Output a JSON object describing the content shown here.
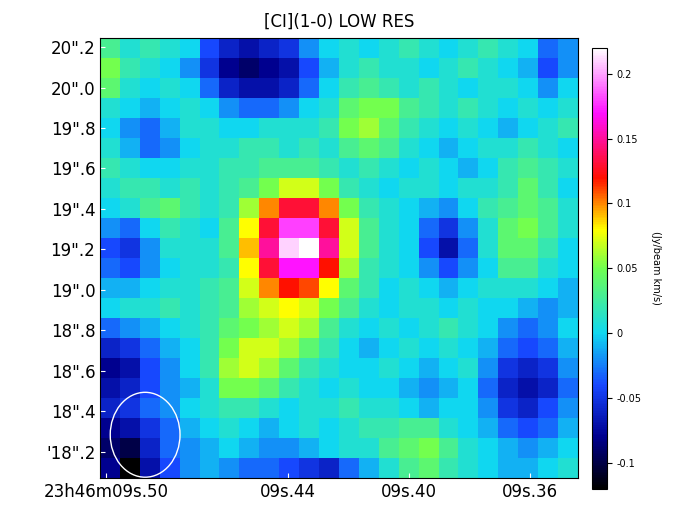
{
  "chart_data": {
    "type": "heatmap",
    "title": "[CI](1-0) LOW RES",
    "xlim": [
      9.502,
      9.344
    ],
    "xticks": [
      {
        "value": 9.5,
        "label": "23h46m09s.50"
      },
      {
        "value": 9.44,
        "label": "09s.44"
      },
      {
        "value": 9.4,
        "label": "09s.40"
      },
      {
        "value": 9.36,
        "label": "09s.36"
      }
    ],
    "ylim": [
      18.07,
      20.245
    ],
    "yticks": [
      {
        "value": 20.2,
        "label": "20\".2"
      },
      {
        "value": 20.0,
        "label": "20\".0"
      },
      {
        "value": 19.8,
        "label": "19\".8"
      },
      {
        "value": 19.6,
        "label": "19\".6"
      },
      {
        "value": 19.4,
        "label": "19\".4"
      },
      {
        "value": 19.2,
        "label": "19\".2"
      },
      {
        "value": 19.0,
        "label": "19\".0"
      },
      {
        "value": 18.8,
        "label": "18\".8"
      },
      {
        "value": 18.6,
        "label": "18\".6"
      },
      {
        "value": 18.4,
        "label": "18\".4"
      },
      {
        "value": 18.2,
        "label": "'18\".2"
      }
    ],
    "colorbar_label": "(Jy/beam km/s)",
    "colorbar_range": [
      -0.12,
      0.22
    ],
    "colorbar_ticks": [
      0.2,
      0.15,
      0.1,
      0.05,
      0,
      -0.05,
      -0.1
    ],
    "cells": [
      [
        0.03,
        0.01,
        0.02,
        0.01,
        0.0,
        -0.04,
        -0.06,
        -0.07,
        -0.06,
        -0.05,
        -0.02,
        0.0,
        0.01,
        0.0,
        0.01,
        0.02,
        0.01,
        0.0,
        0.01,
        0.02,
        0.01,
        0.0,
        -0.03,
        -0.02
      ],
      [
        0.05,
        0.02,
        0.01,
        0.0,
        -0.02,
        -0.05,
        -0.08,
        -0.09,
        -0.08,
        -0.07,
        -0.04,
        -0.01,
        0.01,
        0.02,
        0.01,
        0.01,
        0.0,
        0.01,
        0.02,
        0.01,
        0.0,
        -0.01,
        -0.04,
        -0.02
      ],
      [
        0.04,
        0.01,
        0.0,
        0.01,
        0.0,
        -0.03,
        -0.06,
        -0.07,
        -0.07,
        -0.06,
        -0.03,
        0.0,
        0.02,
        0.03,
        0.02,
        0.01,
        0.02,
        0.01,
        0.0,
        0.01,
        0.01,
        0.0,
        -0.02,
        0.0
      ],
      [
        0.01,
        0.0,
        -0.01,
        0.0,
        0.01,
        0.0,
        -0.02,
        -0.03,
        -0.03,
        -0.02,
        0.0,
        0.01,
        0.04,
        0.05,
        0.05,
        0.03,
        0.02,
        0.01,
        0.02,
        0.01,
        0.0,
        0.01,
        0.0,
        0.01
      ],
      [
        0.0,
        -0.02,
        -0.03,
        -0.01,
        0.01,
        0.01,
        0.0,
        0.0,
        0.01,
        0.01,
        0.01,
        0.02,
        0.05,
        0.06,
        0.04,
        0.02,
        0.01,
        0.0,
        0.01,
        0.0,
        -0.01,
        0.0,
        0.01,
        0.02
      ],
      [
        0.01,
        -0.01,
        -0.03,
        -0.02,
        0.0,
        0.01,
        0.01,
        0.02,
        0.02,
        0.01,
        0.02,
        0.01,
        0.03,
        0.04,
        0.03,
        0.01,
        0.0,
        -0.01,
        0.0,
        0.01,
        0.01,
        0.02,
        0.01,
        0.0
      ],
      [
        0.02,
        0.01,
        0.0,
        0.0,
        0.01,
        0.01,
        0.02,
        0.02,
        0.03,
        0.03,
        0.03,
        0.02,
        0.01,
        0.02,
        0.01,
        0.0,
        0.01,
        0.0,
        -0.01,
        0.0,
        0.02,
        0.03,
        0.02,
        0.01
      ],
      [
        0.01,
        0.02,
        0.02,
        0.01,
        0.02,
        0.01,
        0.02,
        0.03,
        0.05,
        0.07,
        0.07,
        0.05,
        0.02,
        0.01,
        0.0,
        0.01,
        0.01,
        0.0,
        0.01,
        0.01,
        0.02,
        0.04,
        0.02,
        0.0
      ],
      [
        0.0,
        0.01,
        0.03,
        0.04,
        0.02,
        0.01,
        0.02,
        0.06,
        0.1,
        0.13,
        0.13,
        0.1,
        0.05,
        0.02,
        0.01,
        0.0,
        -0.01,
        -0.02,
        0.0,
        0.02,
        0.03,
        0.04,
        0.03,
        0.01
      ],
      [
        -0.02,
        -0.03,
        0.0,
        0.02,
        0.01,
        0.0,
        0.03,
        0.08,
        0.13,
        0.18,
        0.18,
        0.13,
        0.07,
        0.03,
        0.01,
        0.0,
        -0.03,
        -0.05,
        -0.02,
        0.01,
        0.04,
        0.05,
        0.03,
        0.01
      ],
      [
        -0.04,
        -0.05,
        -0.02,
        0.01,
        0.01,
        0.01,
        0.03,
        0.09,
        0.15,
        0.21,
        0.22,
        0.15,
        0.07,
        0.03,
        0.01,
        0.0,
        -0.04,
        -0.07,
        -0.03,
        0.01,
        0.04,
        0.04,
        0.02,
        0.0
      ],
      [
        -0.03,
        -0.04,
        -0.02,
        0.0,
        0.01,
        0.01,
        0.02,
        0.08,
        0.13,
        0.17,
        0.17,
        0.12,
        0.06,
        0.02,
        0.01,
        0.0,
        -0.02,
        -0.04,
        -0.02,
        0.0,
        0.03,
        0.03,
        0.01,
        0.0
      ],
      [
        -0.01,
        -0.01,
        0.0,
        0.01,
        0.01,
        0.02,
        0.03,
        0.07,
        0.1,
        0.12,
        0.11,
        0.08,
        0.04,
        0.02,
        0.0,
        0.01,
        0.0,
        -0.01,
        0.0,
        0.01,
        0.01,
        0.01,
        0.0,
        -0.01
      ],
      [
        0.0,
        0.01,
        0.01,
        0.02,
        0.01,
        0.02,
        0.03,
        0.06,
        0.07,
        0.08,
        0.07,
        0.05,
        0.03,
        0.01,
        0.0,
        0.01,
        0.01,
        0.0,
        0.01,
        0.0,
        0.0,
        -0.01,
        -0.02,
        -0.01
      ],
      [
        -0.03,
        -0.02,
        -0.01,
        0.0,
        0.01,
        0.02,
        0.04,
        0.05,
        0.06,
        0.07,
        0.06,
        0.03,
        0.01,
        0.0,
        0.01,
        0.0,
        0.01,
        0.02,
        0.01,
        0.0,
        -0.02,
        -0.03,
        -0.02,
        0.0
      ],
      [
        -0.06,
        -0.05,
        -0.03,
        -0.01,
        0.0,
        0.02,
        0.05,
        0.07,
        0.07,
        0.06,
        0.04,
        0.02,
        0.0,
        -0.01,
        0.0,
        0.01,
        0.0,
        0.01,
        0.0,
        -0.01,
        -0.03,
        -0.04,
        -0.03,
        -0.01
      ],
      [
        -0.08,
        -0.07,
        -0.04,
        -0.02,
        0.0,
        0.02,
        0.06,
        0.07,
        0.06,
        0.04,
        0.02,
        0.01,
        0.0,
        0.0,
        0.01,
        0.0,
        -0.01,
        0.0,
        0.01,
        -0.02,
        -0.05,
        -0.06,
        -0.05,
        -0.02
      ],
      [
        -0.07,
        -0.06,
        -0.04,
        -0.02,
        -0.01,
        0.01,
        0.05,
        0.05,
        0.04,
        0.02,
        0.01,
        0.0,
        0.01,
        0.0,
        0.0,
        -0.01,
        -0.02,
        -0.01,
        0.0,
        -0.03,
        -0.06,
        -0.07,
        -0.06,
        -0.03
      ],
      [
        -0.06,
        -0.05,
        -0.03,
        -0.02,
        0.0,
        0.01,
        0.02,
        0.02,
        0.01,
        0.0,
        0.01,
        0.01,
        0.02,
        0.01,
        0.01,
        0.0,
        -0.01,
        0.0,
        0.0,
        -0.02,
        -0.05,
        -0.06,
        -0.04,
        -0.02
      ],
      [
        -0.08,
        -0.07,
        -0.05,
        -0.03,
        -0.01,
        0.0,
        0.01,
        0.0,
        -0.01,
        0.0,
        0.01,
        0.0,
        0.01,
        0.02,
        0.02,
        0.03,
        0.03,
        0.01,
        0.0,
        -0.01,
        -0.03,
        -0.04,
        -0.03,
        -0.01
      ],
      [
        -0.09,
        -0.1,
        -0.06,
        -0.03,
        -0.02,
        -0.01,
        0.0,
        -0.01,
        -0.02,
        -0.02,
        -0.01,
        0.0,
        0.01,
        0.01,
        0.03,
        0.04,
        0.05,
        0.03,
        0.01,
        0.0,
        -0.01,
        -0.02,
        -0.01,
        0.0
      ],
      [
        -0.08,
        -0.12,
        -0.07,
        -0.04,
        -0.02,
        -0.01,
        -0.02,
        -0.03,
        -0.03,
        -0.04,
        -0.05,
        -0.06,
        -0.03,
        -0.01,
        0.01,
        0.03,
        0.04,
        0.02,
        0.01,
        0.0,
        -0.01,
        -0.01,
        0.0,
        0.01
      ]
    ]
  }
}
